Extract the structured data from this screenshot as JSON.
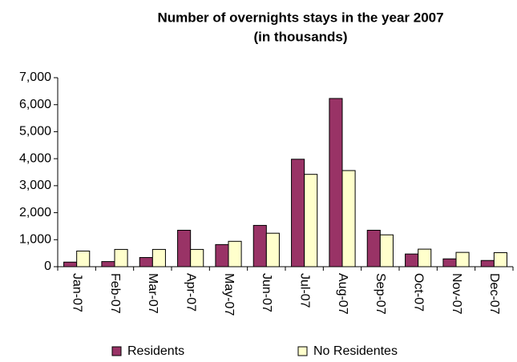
{
  "chart_data": {
    "type": "bar",
    "title": "Number of overnights stays in the year 2007",
    "subtitle": "(in thousands)",
    "categories": [
      "Jan-07",
      "Feb-07",
      "Mar-07",
      "Apr-07",
      "May-07",
      "Jun-07",
      "Jul-07",
      "Aug-07",
      "Sep-07",
      "Oct-07",
      "Nov-07",
      "Dec-07"
    ],
    "series": [
      {
        "name": "Residents",
        "color": "#993366",
        "values": [
          170,
          190,
          340,
          1350,
          820,
          1530,
          3980,
          6230,
          1350,
          470,
          290,
          230
        ]
      },
      {
        "name": "No Residentes",
        "color": "#ffffcc",
        "values": [
          580,
          640,
          640,
          640,
          940,
          1240,
          3420,
          3560,
          1180,
          650,
          530,
          520
        ]
      }
    ],
    "ylim": [
      0,
      7000
    ],
    "yticks": [
      0,
      {
        "value": 1000,
        "label": "1,000"
      },
      {
        "value": 2000,
        "label": "2,000"
      },
      {
        "value": 3000,
        "label": "3,000"
      },
      {
        "value": 4000,
        "label": "4,000"
      },
      {
        "value": 5000,
        "label": "5,000"
      },
      {
        "value": 6000,
        "label": "6,000"
      },
      {
        "value": 7000,
        "label": "7,000"
      }
    ],
    "grid": false,
    "legend": "bottom"
  }
}
